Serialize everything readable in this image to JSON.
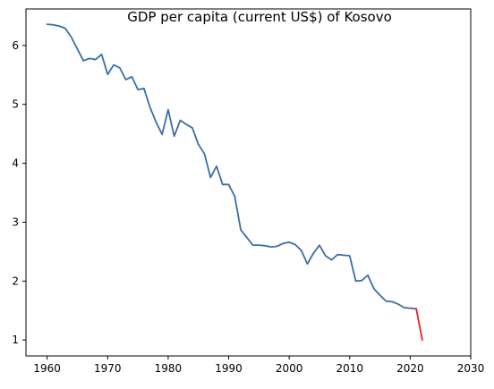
{
  "chart_data": {
    "type": "line",
    "title": "GDP per capita (current US$) of Kosovo",
    "xlabel": "",
    "ylabel": "",
    "xlim": [
      1956.5,
      2030
    ],
    "ylim": [
      0.73,
      6.62
    ],
    "xticks": [
      1960,
      1970,
      1980,
      1990,
      2000,
      2010,
      2020,
      2030
    ],
    "yticks": [
      1,
      2,
      3,
      4,
      5,
      6
    ],
    "grid": false,
    "legend": "none",
    "series": [
      {
        "color": "#3b6ea5",
        "x": [
          1960,
          1961,
          1962,
          1963,
          1964,
          1965,
          1966,
          1967,
          1968,
          1969,
          1970,
          1971,
          1972,
          1973,
          1974,
          1975,
          1976,
          1977,
          1978,
          1979,
          1980,
          1981,
          1982,
          1983,
          1984,
          1985,
          1986,
          1987,
          1988,
          1989,
          1990,
          1991,
          1992,
          1993,
          1994,
          1995,
          1996,
          1997,
          1998,
          1999,
          2000,
          2001,
          2002,
          2003,
          2004,
          2005,
          2006,
          2007,
          2008,
          2009,
          2010,
          2011,
          2012,
          2013,
          2014,
          2015,
          2016,
          2017,
          2018,
          2019,
          2020,
          2021
        ],
        "y": [
          6.36,
          6.35,
          6.33,
          6.29,
          6.14,
          5.94,
          5.74,
          5.78,
          5.76,
          5.85,
          5.51,
          5.67,
          5.62,
          5.42,
          5.47,
          5.25,
          5.27,
          4.95,
          4.7,
          4.49,
          4.91,
          4.46,
          4.73,
          4.66,
          4.6,
          4.32,
          4.16,
          3.76,
          3.95,
          3.64,
          3.64,
          3.44,
          2.87,
          2.74,
          2.61,
          2.61,
          2.6,
          2.58,
          2.59,
          2.64,
          2.66,
          2.62,
          2.52,
          2.29,
          2.47,
          2.61,
          2.43,
          2.36,
          2.45,
          2.44,
          2.43,
          2.0,
          2.01,
          2.1,
          1.87,
          1.76,
          1.66,
          1.65,
          1.61,
          1.55,
          1.54,
          1.53
        ]
      },
      {
        "color": "#e8201c",
        "x": [
          2021,
          2022
        ],
        "y": [
          1.53,
          1.0
        ]
      }
    ]
  }
}
